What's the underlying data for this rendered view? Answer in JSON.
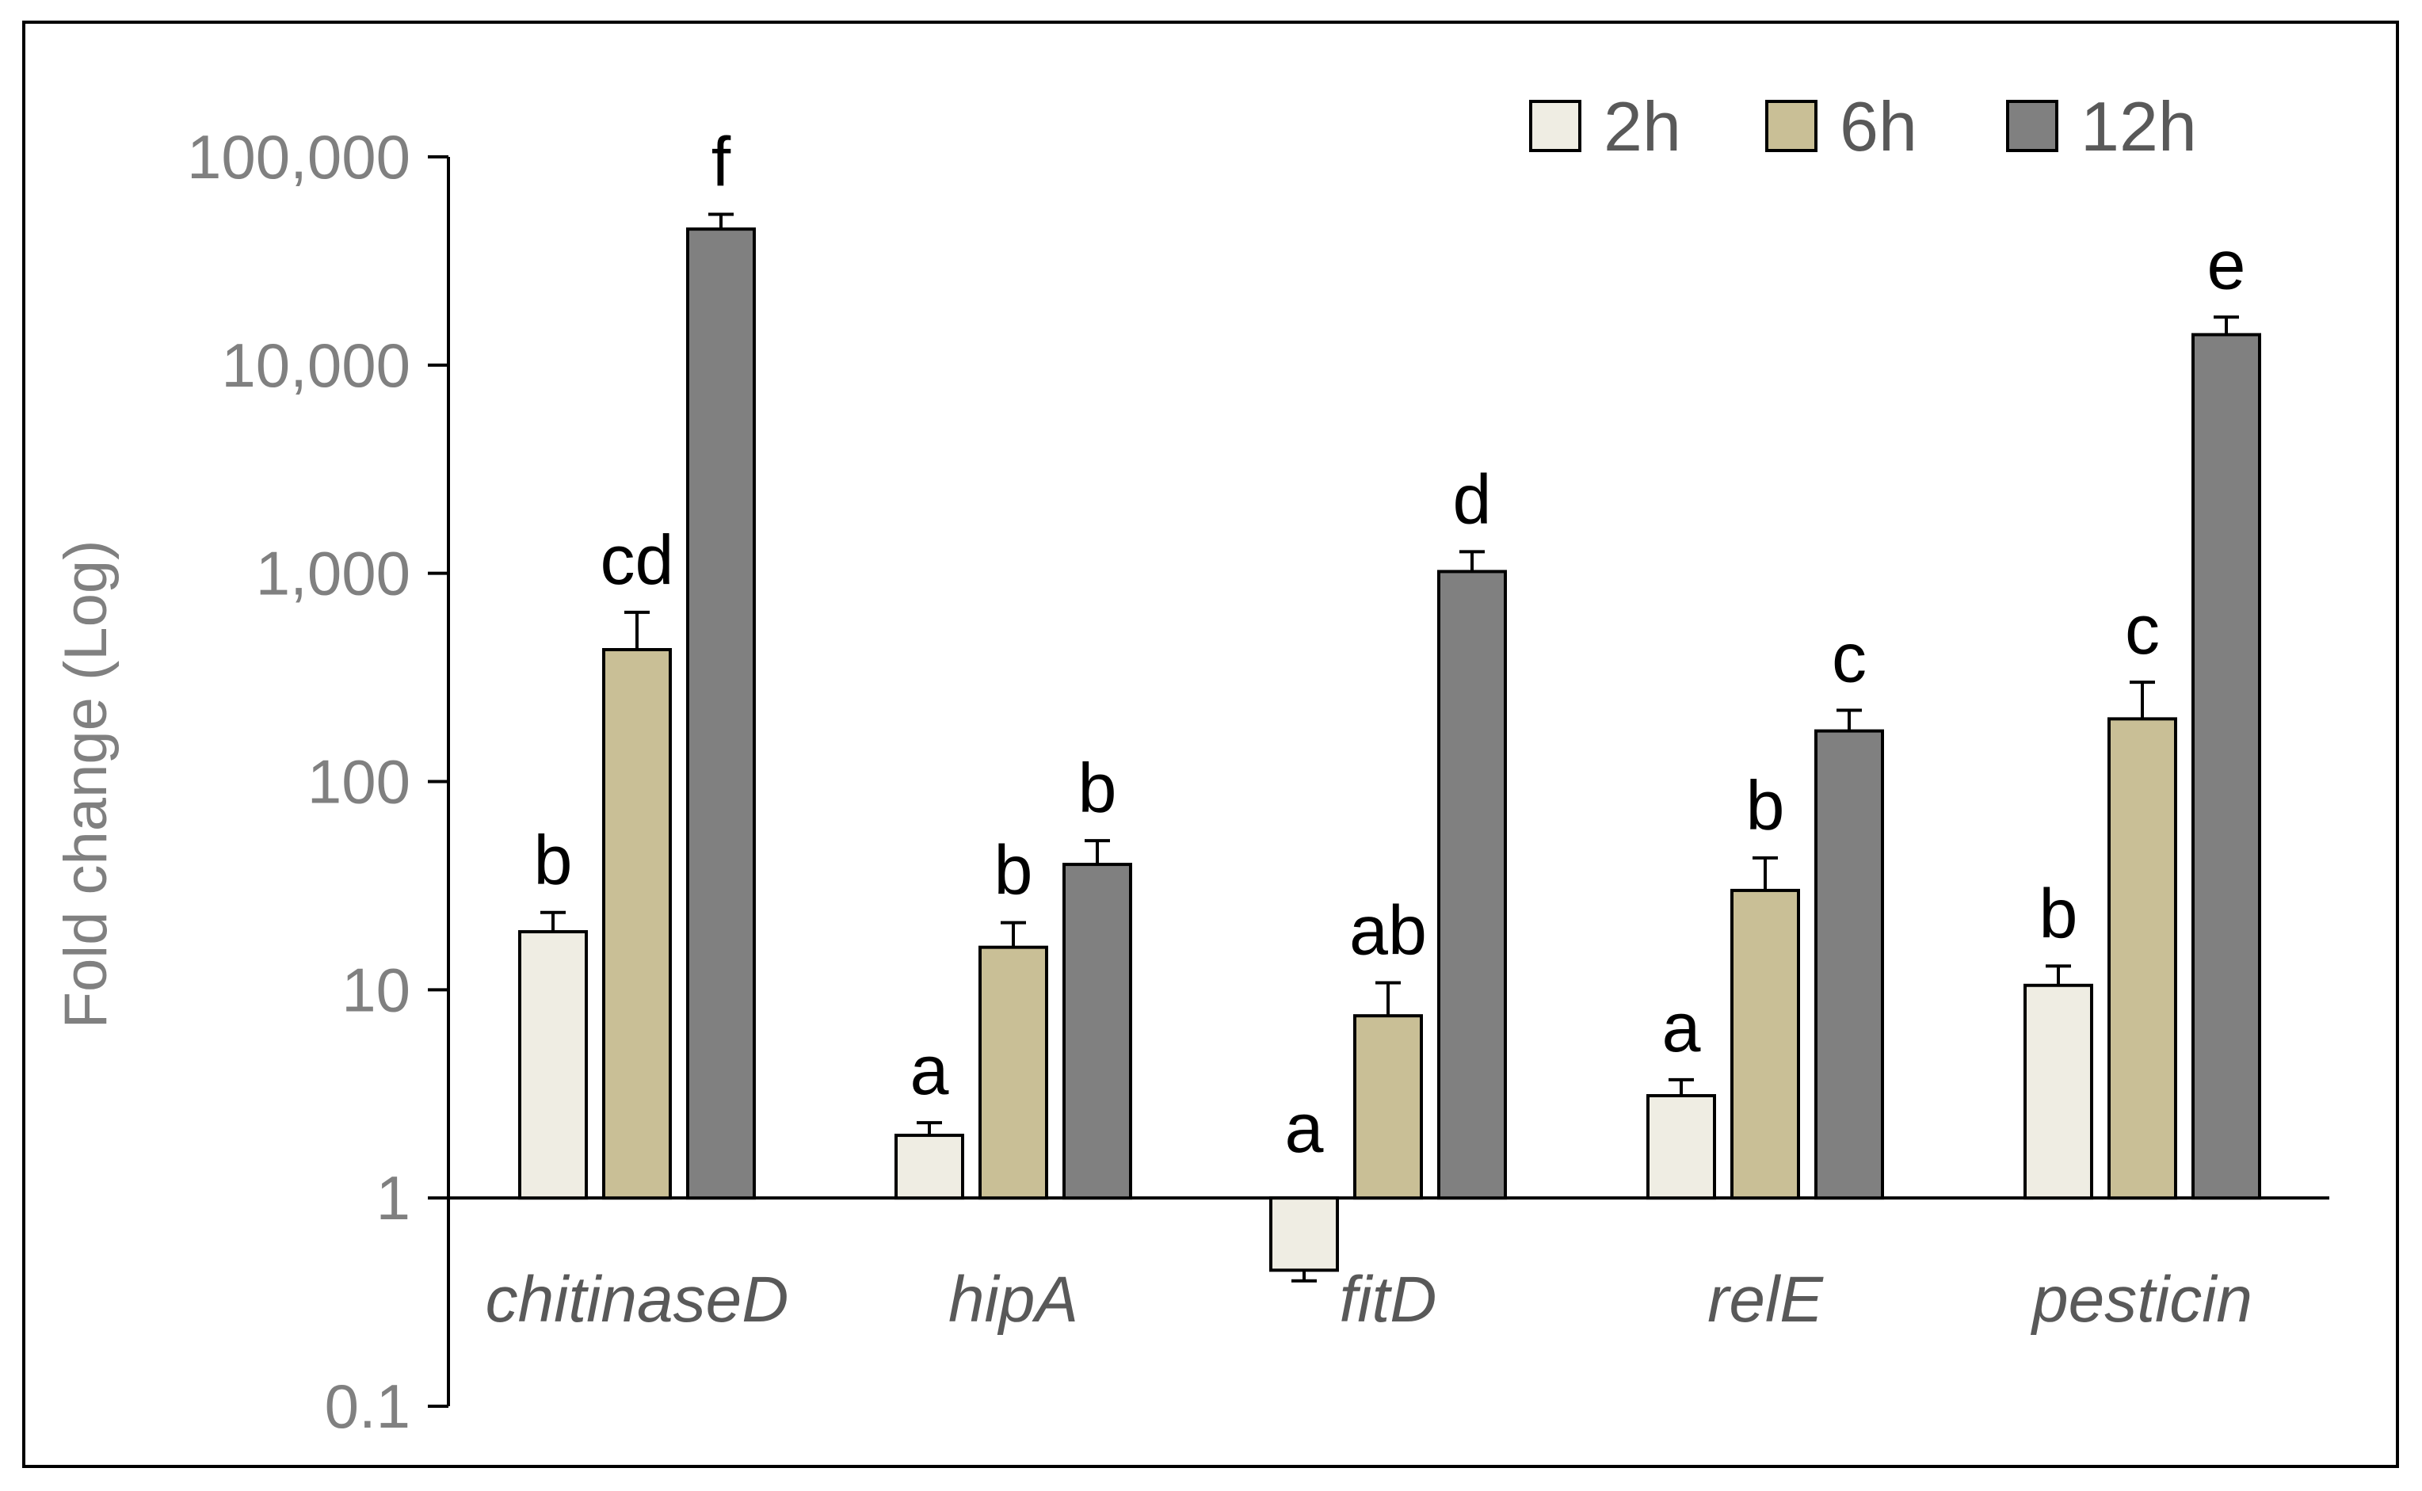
{
  "chart_data": {
    "type": "bar",
    "yscale": "log",
    "ylabel": "Fold change (Log)",
    "ylim": [
      0.1,
      100000
    ],
    "yticks": [
      0.1,
      1,
      10,
      100,
      1000,
      10000,
      100000
    ],
    "ytick_labels": [
      "0.1",
      "1",
      "10",
      "100",
      "1,000",
      "10,000",
      "100,000"
    ],
    "baseline": 1,
    "legend_position": "top-right",
    "categories": [
      "chitinaseD",
      "hipA",
      "fitD",
      "relE",
      "pesticin"
    ],
    "series": [
      {
        "name": "2h",
        "color": "#EFEDE3",
        "values": [
          19,
          2,
          0.45,
          3.1,
          10.5
        ],
        "errors": [
          4.5,
          0.3,
          0.05,
          0.6,
          2.5
        ],
        "letters": [
          "b",
          "a",
          "a",
          "a",
          "b"
        ]
      },
      {
        "name": "6h",
        "color": "#C9BF96",
        "values": [
          430,
          16,
          7.5,
          30,
          200
        ],
        "errors": [
          220,
          5,
          3.3,
          13,
          100
        ],
        "letters": [
          "cd",
          "b",
          "ab",
          "b",
          "c"
        ]
      },
      {
        "name": "12h",
        "color": "#808080",
        "values": [
          45000,
          40,
          1020,
          175,
          14000
        ],
        "errors": [
          8000,
          12,
          250,
          45,
          3000
        ],
        "letters": [
          "f",
          "b",
          "d",
          "c",
          "e"
        ]
      }
    ]
  }
}
